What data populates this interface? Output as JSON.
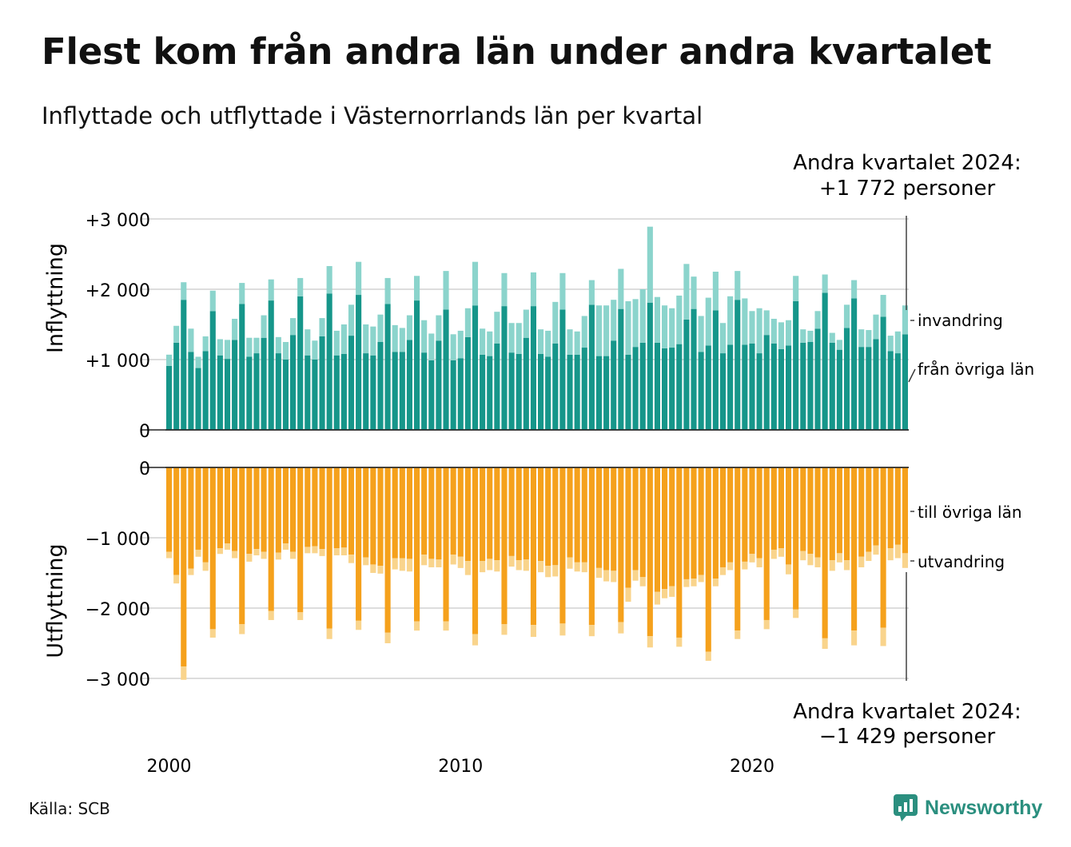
{
  "title": "Flest kom från andra län under andra kvartalet",
  "subtitle": "Inflyttade och utflyttade i Västernorrlands län per kvartal",
  "source": "Källa: SCB",
  "brand": "Newsworthy",
  "colors": {
    "in_domestic": "#16968a",
    "in_immigration": "#8bd4cc",
    "out_domestic": "#f5a11c",
    "out_emigration": "#f9d48c",
    "brand": "#2b8f7f"
  },
  "callout_top": {
    "line1": "Andra kvartalet 2024:",
    "line2": "+1 772 personer"
  },
  "callout_bottom": {
    "line1": "Andra kvartalet 2024:",
    "line2": "−1 429 personer"
  },
  "chart_data": [
    {
      "type": "bar",
      "stacked": true,
      "ylabel": "Inflyttning",
      "ylim": [
        0,
        3000
      ],
      "yticks": [
        0,
        1000,
        2000,
        3000
      ],
      "ytick_labels": [
        "0",
        "+1 000",
        "+2 000",
        "+3 000"
      ],
      "xticks": [
        2000,
        2010,
        2020
      ],
      "x_start": "2000 Q1",
      "x_end": "2024 Q2",
      "grid": true,
      "series": [
        {
          "name": "från övriga län",
          "color": "#16968a",
          "values": [
            910,
            1240,
            1850,
            1110,
            880,
            1120,
            1690,
            1060,
            1010,
            1280,
            1790,
            1040,
            1090,
            1310,
            1840,
            1090,
            1000,
            1350,
            1900,
            1060,
            1000,
            1330,
            1940,
            1060,
            1080,
            1340,
            1920,
            1090,
            1060,
            1250,
            1790,
            1110,
            1110,
            1280,
            1840,
            1100,
            990,
            1270,
            1710,
            990,
            1020,
            1320,
            1770,
            1070,
            1050,
            1230,
            1760,
            1100,
            1080,
            1310,
            1760,
            1080,
            1040,
            1230,
            1710,
            1070,
            1070,
            1170,
            1780,
            1050,
            1050,
            1270,
            1720,
            1070,
            1180,
            1240,
            1810,
            1240,
            1160,
            1170,
            1220,
            1570,
            1720,
            1110,
            1200,
            1700,
            1090,
            1210,
            1850,
            1210,
            1230,
            1090,
            1350,
            1230,
            1150,
            1200,
            1830,
            1240,
            1250,
            1440,
            1950,
            1240,
            1140,
            1450,
            1870,
            1180,
            1180,
            1290,
            1610,
            1120,
            1090,
            1360
          ]
        },
        {
          "name": "invandring",
          "color": "#8bd4cc",
          "values": [
            160,
            240,
            250,
            330,
            160,
            210,
            290,
            230,
            270,
            300,
            300,
            270,
            220,
            320,
            300,
            230,
            250,
            240,
            260,
            370,
            270,
            260,
            390,
            350,
            420,
            440,
            470,
            410,
            410,
            390,
            370,
            380,
            340,
            350,
            350,
            460,
            380,
            360,
            550,
            370,
            390,
            410,
            620,
            370,
            350,
            450,
            470,
            420,
            440,
            400,
            480,
            350,
            370,
            590,
            520,
            360,
            330,
            450,
            350,
            720,
            720,
            580,
            570,
            760,
            680,
            760,
            1080,
            650,
            610,
            560,
            690,
            790,
            460,
            510,
            680,
            550,
            430,
            690,
            410,
            660,
            460,
            640,
            350,
            350,
            380,
            360,
            360,
            190,
            160,
            250,
            260,
            140,
            140,
            330,
            260,
            250,
            240,
            350,
            310,
            220,
            310,
            410
          ]
        },
        {
          "name": "total",
          "color": "#16968a",
          "values": [
            1070,
            1480,
            2100,
            1440,
            1040,
            1330,
            1980,
            1290,
            1280,
            1580,
            2090,
            1310,
            1310,
            1630,
            2140,
            1320,
            1250,
            1590,
            2160,
            1430,
            1270,
            1590,
            2330,
            1410,
            1500,
            1780,
            2390,
            1500,
            1470,
            1640,
            2160,
            1490,
            1450,
            1630,
            2190,
            1560,
            1370,
            1630,
            2260,
            1360,
            1410,
            1730,
            2390,
            1440,
            1400,
            1680,
            2230,
            1520,
            1520,
            1710,
            2240,
            1430,
            1410,
            1820,
            2230,
            1430,
            1400,
            1620,
            2130,
            1770,
            1770,
            1850,
            2290,
            1830,
            1860,
            2000,
            2890,
            1890,
            1770,
            1730,
            1910,
            2360,
            2180,
            1620,
            1880,
            2250,
            1520,
            1900,
            2260,
            1870,
            1690,
            1730,
            1700,
            1580,
            1530,
            1560,
            2190,
            1430,
            1410,
            1690,
            2210,
            1380,
            1280,
            1780,
            2130,
            1430,
            1420,
            1640,
            1920,
            1340,
            1400,
            1772
          ]
        }
      ],
      "labels": {
        "invandring": "invandring",
        "fran": "från övriga län"
      }
    },
    {
      "type": "bar",
      "stacked": true,
      "ylabel": "Utflyttning",
      "ylim": [
        -3000,
        0
      ],
      "yticks": [
        0,
        -1000,
        -2000,
        -3000
      ],
      "ytick_labels": [
        "0",
        "−1 000",
        "−2 000",
        "−3 000"
      ],
      "xticks": [
        2000,
        2010,
        2020
      ],
      "x_start": "2000 Q1",
      "x_end": "2024 Q2",
      "grid": true,
      "series": [
        {
          "name": "till övriga län",
          "color": "#f5a11c",
          "values": [
            -1200,
            -1530,
            -2830,
            -1440,
            -1170,
            -1350,
            -2300,
            -1150,
            -1080,
            -1190,
            -2230,
            -1230,
            -1160,
            -1200,
            -2040,
            -1210,
            -1080,
            -1200,
            -2060,
            -1130,
            -1120,
            -1160,
            -2290,
            -1150,
            -1140,
            -1240,
            -2180,
            -1280,
            -1380,
            -1400,
            -2350,
            -1290,
            -1290,
            -1300,
            -2190,
            -1240,
            -1300,
            -1310,
            -2190,
            -1240,
            -1270,
            -1330,
            -2370,
            -1330,
            -1300,
            -1320,
            -2230,
            -1260,
            -1320,
            -1310,
            -2240,
            -1330,
            -1400,
            -1390,
            -2220,
            -1280,
            -1350,
            -1350,
            -2240,
            -1430,
            -1460,
            -1470,
            -2200,
            -1710,
            -1460,
            -1560,
            -2400,
            -1770,
            -1730,
            -1690,
            -2420,
            -1590,
            -1580,
            -1530,
            -2620,
            -1580,
            -1420,
            -1350,
            -2320,
            -1340,
            -1230,
            -1290,
            -2170,
            -1170,
            -1150,
            -1380,
            -2020,
            -1190,
            -1230,
            -1280,
            -2430,
            -1320,
            -1220,
            -1320,
            -2320,
            -1270,
            -1200,
            -1110,
            -2280,
            -1150,
            -1100,
            -1220
          ]
        },
        {
          "name": "utvandring",
          "color": "#f9d48c",
          "values": [
            -90,
            -120,
            -190,
            -90,
            -100,
            -120,
            -120,
            -80,
            -90,
            -100,
            -140,
            -110,
            -90,
            -100,
            -130,
            -100,
            -90,
            -100,
            -110,
            -90,
            -100,
            -100,
            -150,
            -100,
            -110,
            -120,
            -130,
            -110,
            -120,
            -110,
            -150,
            -160,
            -180,
            -180,
            -130,
            -150,
            -120,
            -110,
            -130,
            -140,
            -160,
            -200,
            -160,
            -160,
            -160,
            -160,
            -150,
            -150,
            -140,
            -160,
            -170,
            -160,
            -160,
            -160,
            -170,
            -160,
            -130,
            -140,
            -160,
            -140,
            -160,
            -160,
            -160,
            -200,
            -150,
            -130,
            -160,
            -180,
            -130,
            -150,
            -130,
            -110,
            -110,
            -100,
            -130,
            -110,
            -110,
            -110,
            -120,
            -110,
            -120,
            -130,
            -130,
            -130,
            -120,
            -140,
            -120,
            -130,
            -160,
            -140,
            -150,
            -150,
            -130,
            -140,
            -210,
            -150,
            -130,
            -130,
            -260,
            -170,
            -190,
            -209
          ]
        },
        {
          "name": "total",
          "color": "#f5a11c",
          "values": [
            -1290,
            -1650,
            -3020,
            -1530,
            -1270,
            -1470,
            -2420,
            -1230,
            -1170,
            -1290,
            -2370,
            -1340,
            -1250,
            -1300,
            -2170,
            -1310,
            -1170,
            -1300,
            -2170,
            -1220,
            -1220,
            -1260,
            -2440,
            -1250,
            -1250,
            -1360,
            -2310,
            -1390,
            -1500,
            -1510,
            -2500,
            -1450,
            -1470,
            -1480,
            -2320,
            -1390,
            -1420,
            -1420,
            -2320,
            -1380,
            -1430,
            -1530,
            -2530,
            -1490,
            -1460,
            -1480,
            -2380,
            -1410,
            -1460,
            -1470,
            -2410,
            -1490,
            -1560,
            -1550,
            -2390,
            -1440,
            -1480,
            -1490,
            -2400,
            -1570,
            -1620,
            -1630,
            -2360,
            -1910,
            -1610,
            -1690,
            -2560,
            -1950,
            -1860,
            -1840,
            -2550,
            -1700,
            -1690,
            -1630,
            -2750,
            -1690,
            -1530,
            -1460,
            -2440,
            -1450,
            -1350,
            -1420,
            -2300,
            -1300,
            -1270,
            -1520,
            -2140,
            -1320,
            -1390,
            -1420,
            -2580,
            -1470,
            -1350,
            -1460,
            -2530,
            -1420,
            -1330,
            -1240,
            -2540,
            -1320,
            -1290,
            -1429
          ]
        }
      ],
      "labels": {
        "till": "till övriga län",
        "utvandring": "utvandring"
      }
    }
  ]
}
